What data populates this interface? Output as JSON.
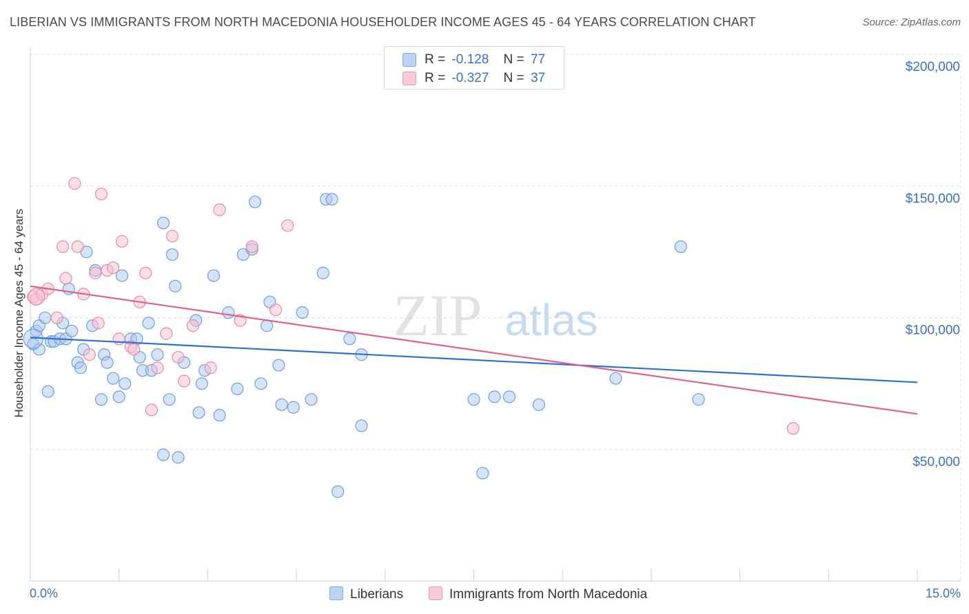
{
  "title": "LIBERIAN VS IMMIGRANTS FROM NORTH MACEDONIA HOUSEHOLDER INCOME AGES 45 - 64 YEARS CORRELATION CHART",
  "source": "Source: ZipAtlas.com",
  "watermark": {
    "zip": "ZIP",
    "atlas": "atlas"
  },
  "colors": {
    "blue_fill": "#a9c8f0",
    "blue_stroke": "#6f9fdc",
    "blue_line": "#2f6fd0",
    "pink_fill": "#f6bfd0",
    "pink_stroke": "#e98aa8",
    "pink_line": "#e0608f",
    "axis_text": "#3a6fc8",
    "grid": "#dcdcdc"
  },
  "legend": {
    "rows": [
      {
        "r_label": "R =",
        "r_value": "-0.128",
        "n_label": "N =",
        "n_value": "77"
      },
      {
        "r_label": "R =",
        "r_value": "-0.327",
        "n_label": "N =",
        "n_value": "37"
      }
    ]
  },
  "bottom_legend": {
    "series1": "Liberians",
    "series2": "Immigrants from North Macedonia"
  },
  "chart_data": {
    "type": "scatter",
    "title": "LIBERIAN VS IMMIGRANTS FROM NORTH MACEDONIA HOUSEHOLDER INCOME AGES 45 - 64 YEARS CORRELATION CHART",
    "xlabel": "",
    "ylabel": "Householder Income Ages 45 - 64 years",
    "xlim": [
      0,
      15
    ],
    "ylim": [
      5000,
      210000
    ],
    "x_tick_labels": [
      "0.0%",
      "15.0%"
    ],
    "y_ticks": [
      50000,
      100000,
      150000,
      200000
    ],
    "y_tick_labels": [
      "$50,000",
      "$100,000",
      "$150,000",
      "$200,000"
    ],
    "grid": true,
    "legend_position": "top-center",
    "series": [
      {
        "name": "Liberians",
        "color": "#a9c8f0",
        "trend": {
          "x": [
            0,
            15
          ],
          "y": [
            92500,
            75500
          ]
        },
        "points": [
          [
            0.05,
            90000
          ],
          [
            0.1,
            95000
          ],
          [
            0.15,
            88000
          ],
          [
            0.15,
            97000
          ],
          [
            0.25,
            100000
          ],
          [
            0.3,
            72000
          ],
          [
            0.35,
            91000
          ],
          [
            0.4,
            91000
          ],
          [
            0.5,
            92000
          ],
          [
            0.55,
            98000
          ],
          [
            0.6,
            92000
          ],
          [
            0.65,
            111000
          ],
          [
            0.7,
            95000
          ],
          [
            0.8,
            83000
          ],
          [
            0.85,
            81000
          ],
          [
            0.9,
            88000
          ],
          [
            0.95,
            125000
          ],
          [
            1.05,
            97000
          ],
          [
            1.1,
            118000
          ],
          [
            1.2,
            69000
          ],
          [
            1.25,
            86000
          ],
          [
            1.3,
            83000
          ],
          [
            1.4,
            77000
          ],
          [
            1.5,
            70000
          ],
          [
            1.55,
            116000
          ],
          [
            1.6,
            75000
          ],
          [
            1.7,
            92000
          ],
          [
            1.8,
            92000
          ],
          [
            1.85,
            85000
          ],
          [
            1.9,
            80000
          ],
          [
            2.0,
            98000
          ],
          [
            2.05,
            80000
          ],
          [
            2.15,
            86000
          ],
          [
            2.25,
            48000
          ],
          [
            2.25,
            136000
          ],
          [
            2.35,
            69000
          ],
          [
            2.4,
            124000
          ],
          [
            2.45,
            112000
          ],
          [
            2.5,
            47000
          ],
          [
            2.6,
            83000
          ],
          [
            2.8,
            99000
          ],
          [
            2.85,
            64000
          ],
          [
            2.9,
            75000
          ],
          [
            2.95,
            80000
          ],
          [
            3.1,
            116000
          ],
          [
            3.2,
            63000
          ],
          [
            3.35,
            102000
          ],
          [
            3.5,
            73000
          ],
          [
            3.6,
            124000
          ],
          [
            3.75,
            126000
          ],
          [
            3.8,
            144000
          ],
          [
            3.9,
            75000
          ],
          [
            4.0,
            97000
          ],
          [
            4.05,
            106000
          ],
          [
            4.2,
            82000
          ],
          [
            4.25,
            67000
          ],
          [
            4.45,
            66000
          ],
          [
            4.6,
            102000
          ],
          [
            4.75,
            69000
          ],
          [
            4.95,
            117000
          ],
          [
            5.0,
            145000
          ],
          [
            5.1,
            145000
          ],
          [
            5.2,
            34000
          ],
          [
            5.4,
            92000
          ],
          [
            5.6,
            86000
          ],
          [
            5.6,
            59000
          ],
          [
            7.5,
            69000
          ],
          [
            7.65,
            41000
          ],
          [
            7.85,
            70000
          ],
          [
            8.1,
            70000
          ],
          [
            8.6,
            67000
          ],
          [
            9.9,
            77000
          ],
          [
            11.0,
            127000
          ],
          [
            11.3,
            69000
          ]
        ]
      },
      {
        "name": "Immigrants from North Macedonia",
        "color": "#f6bfd0",
        "trend": {
          "x": [
            0,
            15
          ],
          "y": [
            112000,
            63500
          ]
        },
        "points": [
          [
            0.05,
            108000
          ],
          [
            0.1,
            107000
          ],
          [
            0.2,
            109000
          ],
          [
            0.3,
            111000
          ],
          [
            0.45,
            100000
          ],
          [
            0.55,
            127000
          ],
          [
            0.6,
            115000
          ],
          [
            0.75,
            151000
          ],
          [
            0.8,
            127000
          ],
          [
            0.9,
            109000
          ],
          [
            1.0,
            86000
          ],
          [
            1.1,
            117000
          ],
          [
            1.15,
            98000
          ],
          [
            1.2,
            147000
          ],
          [
            1.3,
            118000
          ],
          [
            1.4,
            119000
          ],
          [
            1.5,
            92000
          ],
          [
            1.55,
            129000
          ],
          [
            1.7,
            89000
          ],
          [
            1.75,
            88000
          ],
          [
            1.85,
            106000
          ],
          [
            1.95,
            117000
          ],
          [
            2.05,
            65000
          ],
          [
            2.15,
            81000
          ],
          [
            2.3,
            94000
          ],
          [
            2.4,
            131000
          ],
          [
            2.5,
            85000
          ],
          [
            2.6,
            76000
          ],
          [
            2.75,
            97000
          ],
          [
            3.05,
            81000
          ],
          [
            3.2,
            141000
          ],
          [
            3.55,
            99000
          ],
          [
            3.75,
            127000
          ],
          [
            4.15,
            103000
          ],
          [
            4.35,
            135000
          ],
          [
            12.9,
            58000
          ]
        ]
      }
    ]
  }
}
